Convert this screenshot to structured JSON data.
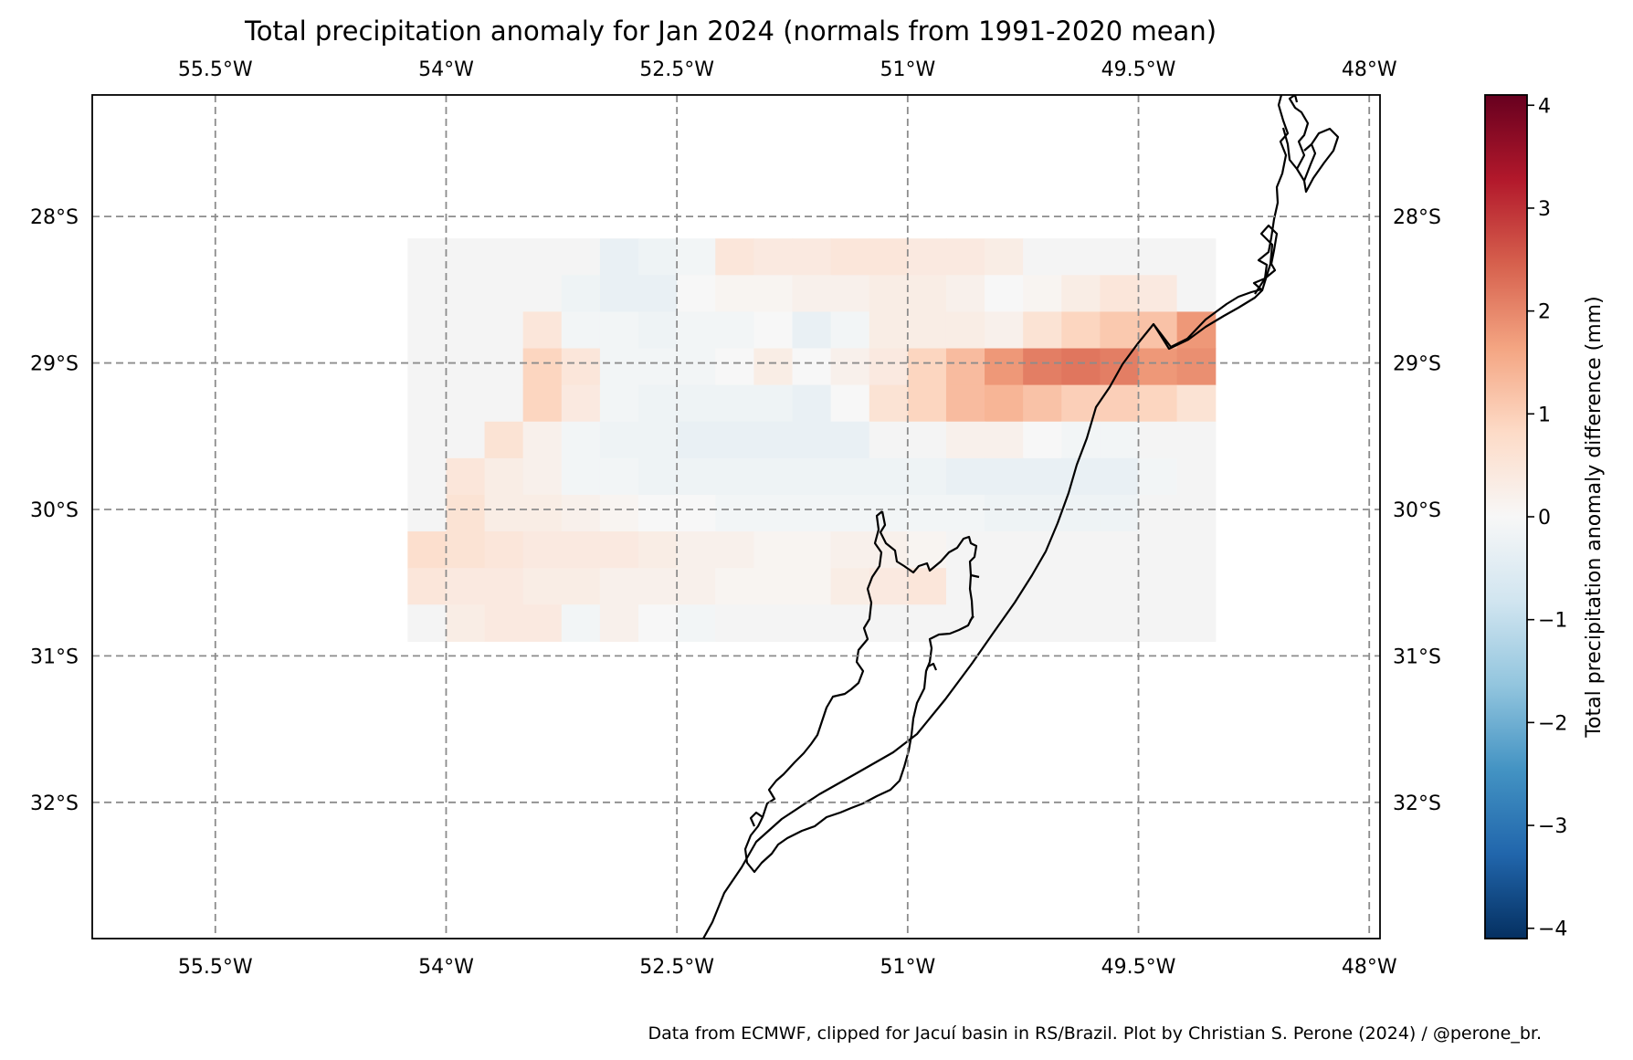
{
  "title": "Total precipitation anomaly for Jan 2024 (normals from 1991-2020 mean)",
  "footer": "Data from ECMWF, clipped for Jacuí basin in RS/Brazil. Plot by Christian S. Perone (2024) / @perone_br.",
  "map": {
    "lon_range": [
      -56.3,
      -47.93
    ],
    "lat_range": [
      -32.93,
      -27.17
    ],
    "lon_ticks": [
      {
        "value": -55.5,
        "label": "55.5°W"
      },
      {
        "value": -54.0,
        "label": "54°W"
      },
      {
        "value": -52.5,
        "label": "52.5°W"
      },
      {
        "value": -51.0,
        "label": "51°W"
      },
      {
        "value": -49.5,
        "label": "49.5°W"
      },
      {
        "value": -48.0,
        "label": "48°W"
      }
    ],
    "lat_ticks": [
      {
        "value": -28,
        "label": "28°S"
      },
      {
        "value": -29,
        "label": "29°S"
      },
      {
        "value": -30,
        "label": "30°S"
      },
      {
        "value": -31,
        "label": "31°S"
      },
      {
        "value": -32,
        "label": "32°S"
      }
    ],
    "gridlines": true,
    "gridline_style": "dashed",
    "grid": {
      "lon_start": -54.25,
      "lat_start": -28.15,
      "cell_deg": 0.25,
      "nodata_color": "#f4f4f4",
      "rows": [
        [
          null,
          null,
          null,
          null,
          null,
          -0.3,
          -0.2,
          -0.1,
          0.5,
          0.4,
          0.4,
          0.5,
          0.5,
          0.4,
          0.4,
          0.3,
          null,
          null,
          null,
          null,
          null
        ],
        [
          null,
          null,
          null,
          null,
          -0.2,
          -0.3,
          -0.3,
          0.0,
          0.1,
          0.1,
          0.2,
          0.2,
          0.3,
          0.3,
          0.2,
          0.0,
          0.1,
          0.3,
          0.5,
          0.4,
          null
        ],
        [
          null,
          null,
          null,
          0.5,
          -0.1,
          -0.1,
          -0.2,
          -0.1,
          -0.1,
          0.0,
          -0.3,
          -0.1,
          0.3,
          0.3,
          0.3,
          0.2,
          0.6,
          0.9,
          1.1,
          1.2,
          1.8
        ],
        [
          null,
          null,
          null,
          0.9,
          0.5,
          -0.1,
          -0.1,
          -0.1,
          0.0,
          0.3,
          0.0,
          0.2,
          0.4,
          0.9,
          1.3,
          1.8,
          2.1,
          2.2,
          2.1,
          1.8,
          1.9
        ],
        [
          null,
          null,
          null,
          0.9,
          0.4,
          -0.1,
          -0.2,
          -0.2,
          -0.2,
          -0.2,
          -0.3,
          0.0,
          0.6,
          0.9,
          1.3,
          1.4,
          1.2,
          1.0,
          1.0,
          0.9,
          0.6
        ],
        [
          null,
          null,
          0.6,
          0.2,
          -0.1,
          -0.2,
          -0.2,
          -0.3,
          -0.3,
          -0.3,
          -0.3,
          -0.3,
          null,
          null,
          0.2,
          0.2,
          0.0,
          -0.1,
          -0.1,
          null,
          null
        ],
        [
          null,
          0.5,
          0.3,
          0.2,
          -0.1,
          -0.1,
          -0.2,
          -0.2,
          -0.2,
          -0.2,
          -0.2,
          -0.2,
          -0.2,
          -0.2,
          -0.3,
          -0.3,
          -0.3,
          -0.3,
          -0.3,
          -0.1,
          null
        ],
        [
          null,
          0.6,
          0.3,
          0.3,
          0.2,
          0.1,
          0.0,
          0.0,
          -0.1,
          -0.1,
          -0.1,
          -0.1,
          -0.1,
          -0.1,
          -0.1,
          -0.2,
          -0.2,
          -0.2,
          -0.2,
          null,
          null
        ],
        [
          0.7,
          0.6,
          0.5,
          0.4,
          0.4,
          0.4,
          0.3,
          0.2,
          0.2,
          0.1,
          0.1,
          0.2,
          0.2,
          0.1,
          null,
          null,
          null,
          null,
          null,
          null,
          null
        ],
        [
          0.5,
          0.4,
          0.4,
          0.3,
          0.3,
          0.2,
          0.2,
          0.2,
          0.1,
          0.1,
          0.1,
          0.3,
          0.4,
          0.5,
          null,
          null,
          null,
          null,
          null,
          null,
          null
        ],
        [
          null,
          0.3,
          0.4,
          0.4,
          -0.1,
          0.2,
          0.0,
          -0.1,
          null,
          null,
          null,
          null,
          null,
          null,
          null,
          null,
          null,
          null,
          null,
          null,
          null
        ]
      ]
    }
  },
  "colorbar": {
    "label": "Total precipitation anomaly difference (mm)",
    "min": -4.1,
    "max": 4.1,
    "ticks": [
      4,
      3,
      2,
      1,
      0,
      -1,
      -2,
      -3,
      -4
    ],
    "tick_labels": [
      "4",
      "3",
      "2",
      "1",
      "0",
      "−1",
      "−2",
      "−3",
      "−4"
    ],
    "colormap": "RdBu_r",
    "stops": [
      "#053061",
      "#2166ac",
      "#4393c3",
      "#92c5de",
      "#d1e5f0",
      "#f7f7f7",
      "#fddbc7",
      "#f4a582",
      "#d6604d",
      "#b2182b",
      "#67001f"
    ]
  }
}
